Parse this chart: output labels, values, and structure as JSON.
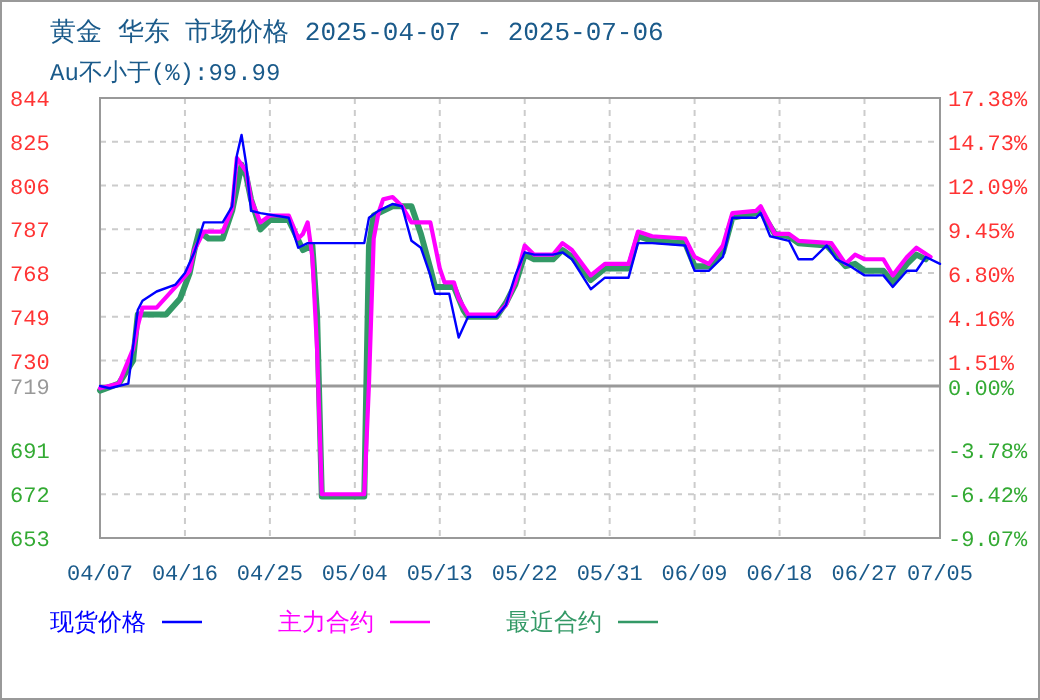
{
  "chart_data": {
    "type": "line",
    "title": "黄金 华东 市场价格 2025-04-07 - 2025-07-06",
    "subtitle": "Au不小于(%):99.99",
    "xlim": [
      "2025-04-07",
      "2025-07-05"
    ],
    "xticks": [
      {
        "value": "2025-04-07",
        "label": "04/07"
      },
      {
        "value": "2025-04-16",
        "label": "04/16"
      },
      {
        "value": "2025-04-25",
        "label": "04/25"
      },
      {
        "value": "2025-05-04",
        "label": "05/04"
      },
      {
        "value": "2025-05-13",
        "label": "05/13"
      },
      {
        "value": "2025-05-22",
        "label": "05/22"
      },
      {
        "value": "2025-05-31",
        "label": "05/31"
      },
      {
        "value": "2025-06-09",
        "label": "06/09"
      },
      {
        "value": "2025-06-18",
        "label": "06/18"
      },
      {
        "value": "2025-06-27",
        "label": "06/27"
      },
      {
        "value": "2025-07-05",
        "label": "07/05"
      }
    ],
    "ylim": [
      653,
      844
    ],
    "yticks": [
      653,
      672,
      691,
      719,
      730,
      749,
      768,
      787,
      806,
      825,
      844
    ],
    "y2lim": [
      -9.07,
      17.38
    ],
    "y2ticks": [
      {
        "value": -9.07,
        "label": "-9.07%"
      },
      {
        "value": -6.42,
        "label": "-6.42%"
      },
      {
        "value": -3.78,
        "label": "-3.78%"
      },
      {
        "value": 0,
        "label": "0.00%"
      },
      {
        "value": 1.51,
        "label": "1.51%"
      },
      {
        "value": 4.16,
        "label": "4.16%"
      },
      {
        "value": 6.8,
        "label": "6.80%"
      },
      {
        "value": 9.45,
        "label": "9.45%"
      },
      {
        "value": 12.09,
        "label": "12.09%"
      },
      {
        "value": 14.73,
        "label": "14.73%"
      },
      {
        "value": 17.38,
        "label": "17.38%"
      }
    ],
    "grid": true,
    "legend": "bottom",
    "line_style": "solid",
    "ref_lines": [
      {
        "axis": "y",
        "value": 719,
        "color": "#999999",
        "line_style": "solid"
      }
    ],
    "series": [
      {
        "name": "现货价格",
        "color": "#0000ff",
        "x": [
          "2025-04-07",
          "2025-04-08",
          "2025-04-10",
          "2025-04-11",
          "2025-04-11T12:00",
          "2025-04-13",
          "2025-04-15",
          "2025-04-16",
          "2025-04-17",
          "2025-04-18",
          "2025-04-20",
          "2025-04-21",
          "2025-04-21T12:00",
          "2025-04-22",
          "2025-04-22T12:00",
          "2025-04-23",
          "2025-04-24",
          "2025-04-27",
          "2025-04-28",
          "2025-04-29",
          "2025-05-05",
          "2025-05-05T12:00",
          "2025-05-06T12:00",
          "2025-05-08",
          "2025-05-09",
          "2025-05-10",
          "2025-05-11",
          "2025-05-12",
          "2025-05-12T12:00",
          "2025-05-14",
          "2025-05-15",
          "2025-05-16",
          "2025-05-19",
          "2025-05-20",
          "2025-05-21",
          "2025-05-22",
          "2025-05-23",
          "2025-05-25",
          "2025-05-26",
          "2025-05-27",
          "2025-05-29",
          "2025-05-30T12:00",
          "2025-06-02",
          "2025-06-03",
          "2025-06-04T12:00",
          "2025-06-08",
          "2025-06-09",
          "2025-06-10T12:00",
          "2025-06-12",
          "2025-06-13",
          "2025-06-15T12:00",
          "2025-06-16",
          "2025-06-17",
          "2025-06-19",
          "2025-06-20",
          "2025-06-21T12:00",
          "2025-06-23",
          "2025-06-24",
          "2025-06-25T12:00",
          "2025-06-27",
          "2025-06-29",
          "2025-06-30",
          "2025-07-01T12:00",
          "2025-07-02T12:00",
          "2025-07-03T12:00",
          "2025-07-05"
        ],
        "values": [
          719,
          718,
          720,
          752,
          756,
          760,
          763,
          768,
          777,
          790,
          790,
          797,
          819,
          828,
          815,
          795,
          794,
          792,
          779,
          781,
          781,
          792,
          795,
          798,
          797,
          782,
          779,
          767,
          759,
          759,
          740,
          749,
          749,
          754,
          767,
          777,
          776,
          776,
          777,
          774,
          761,
          766,
          766,
          781,
          781,
          780,
          769,
          769,
          775,
          792,
          792,
          794,
          784,
          782,
          774,
          774,
          780,
          774,
          771,
          767,
          767,
          762,
          769,
          769,
          775,
          772
        ]
      },
      {
        "name": "主力合约",
        "color": "#ff00ff",
        "x": [
          "2025-04-07",
          "2025-04-09",
          "2025-04-10T12:00",
          "2025-04-11",
          "2025-04-11T12:00",
          "2025-04-13",
          "2025-04-15",
          "2025-04-16T12:00",
          "2025-04-17",
          "2025-04-18",
          "2025-04-20",
          "2025-04-21",
          "2025-04-21T12:00",
          "2025-04-22T12:00",
          "2025-04-23",
          "2025-04-24",
          "2025-04-25",
          "2025-04-27",
          "2025-04-28",
          "2025-04-28T12:00",
          "2025-04-29",
          "2025-04-29T12:00",
          "2025-04-30",
          "2025-04-30T12:00",
          "2025-05-05",
          "2025-05-05T12:00",
          "2025-05-06",
          "2025-05-06T12:00",
          "2025-05-07",
          "2025-05-08",
          "2025-05-09",
          "2025-05-10",
          "2025-05-12",
          "2025-05-13",
          "2025-05-13T12:00",
          "2025-05-14T12:00",
          "2025-05-15",
          "2025-05-16",
          "2025-05-19",
          "2025-05-20",
          "2025-05-21",
          "2025-05-22",
          "2025-05-23",
          "2025-05-25",
          "2025-05-26",
          "2025-05-27",
          "2025-05-29",
          "2025-05-30T12:00",
          "2025-06-02",
          "2025-06-03",
          "2025-06-04T12:00",
          "2025-06-08",
          "2025-06-09",
          "2025-06-10T12:00",
          "2025-06-12",
          "2025-06-13",
          "2025-06-15T12:00",
          "2025-06-16",
          "2025-06-17T12:00",
          "2025-06-19",
          "2025-06-20",
          "2025-06-23T12:00",
          "2025-06-25",
          "2025-06-26",
          "2025-06-27",
          "2025-06-29",
          "2025-06-30",
          "2025-07-01T12:00",
          "2025-07-02T12:00",
          "2025-07-04"
        ],
        "values": [
          718,
          720,
          735,
          745,
          753,
          753,
          762,
          769,
          778,
          786,
          786,
          796,
          818,
          812,
          800,
          790,
          793,
          793,
          783,
          785,
          790,
          775,
          735,
          672,
          672,
          720,
          783,
          794,
          800,
          801,
          797,
          790,
          790,
          770,
          764,
          764,
          757,
          750,
          750,
          754,
          764,
          780,
          776,
          776,
          781,
          778,
          767,
          772,
          772,
          786,
          784,
          783,
          775,
          772,
          780,
          794,
          795,
          797,
          785,
          785,
          782,
          781,
          772,
          776,
          774,
          774,
          767,
          775,
          779,
          775
        ]
      },
      {
        "name": "最近合约",
        "color": "#339966",
        "x": [
          "2025-04-07",
          "2025-04-09",
          "2025-04-10T12:00",
          "2025-04-11",
          "2025-04-14",
          "2025-04-15T12:00",
          "2025-04-16T12:00",
          "2025-04-17",
          "2025-04-17T12:00",
          "2025-04-18T12:00",
          "2025-04-20",
          "2025-04-21",
          "2025-04-22",
          "2025-04-22T12:00",
          "2025-04-23",
          "2025-04-24",
          "2025-04-25",
          "2025-04-27",
          "2025-04-28T12:00",
          "2025-04-29T12:00",
          "2025-04-30",
          "2025-04-30T12:00",
          "2025-05-05",
          "2025-05-05T12:00",
          "2025-05-06",
          "2025-05-07",
          "2025-05-08",
          "2025-05-10",
          "2025-05-11",
          "2025-05-12",
          "2025-05-12T12:00",
          "2025-05-14T12:00",
          "2025-05-15T12:00",
          "2025-05-16",
          "2025-05-19",
          "2025-05-20",
          "2025-05-21",
          "2025-05-22",
          "2025-05-23",
          "2025-05-25",
          "2025-05-26",
          "2025-05-27",
          "2025-05-29",
          "2025-05-30T12:00",
          "2025-06-02",
          "2025-06-03",
          "2025-06-04T12:00",
          "2025-06-08",
          "2025-06-09",
          "2025-06-10T12:00",
          "2025-06-12",
          "2025-06-13",
          "2025-06-15T12:00",
          "2025-06-16",
          "2025-06-17T12:00",
          "2025-06-19",
          "2025-06-20",
          "2025-06-23",
          "2025-06-25",
          "2025-06-26",
          "2025-06-27",
          "2025-06-29",
          "2025-06-30",
          "2025-07-01T12:00",
          "2025-07-02T12:00",
          "2025-07-03T12:00"
        ],
        "values": [
          717,
          720,
          730,
          750,
          750,
          757,
          768,
          778,
          786,
          783,
          783,
          795,
          815,
          810,
          800,
          787,
          791,
          791,
          778,
          780,
          750,
          671,
          671,
          780,
          793,
          795,
          797,
          797,
          785,
          770,
          762,
          762,
          752,
          749,
          749,
          755,
          763,
          776,
          774,
          774,
          778,
          775,
          765,
          770,
          770,
          784,
          782,
          781,
          771,
          771,
          777,
          792,
          794,
          795,
          785,
          784,
          781,
          780,
          771,
          772,
          769,
          769,
          764,
          772,
          776,
          774
        ]
      }
    ]
  }
}
